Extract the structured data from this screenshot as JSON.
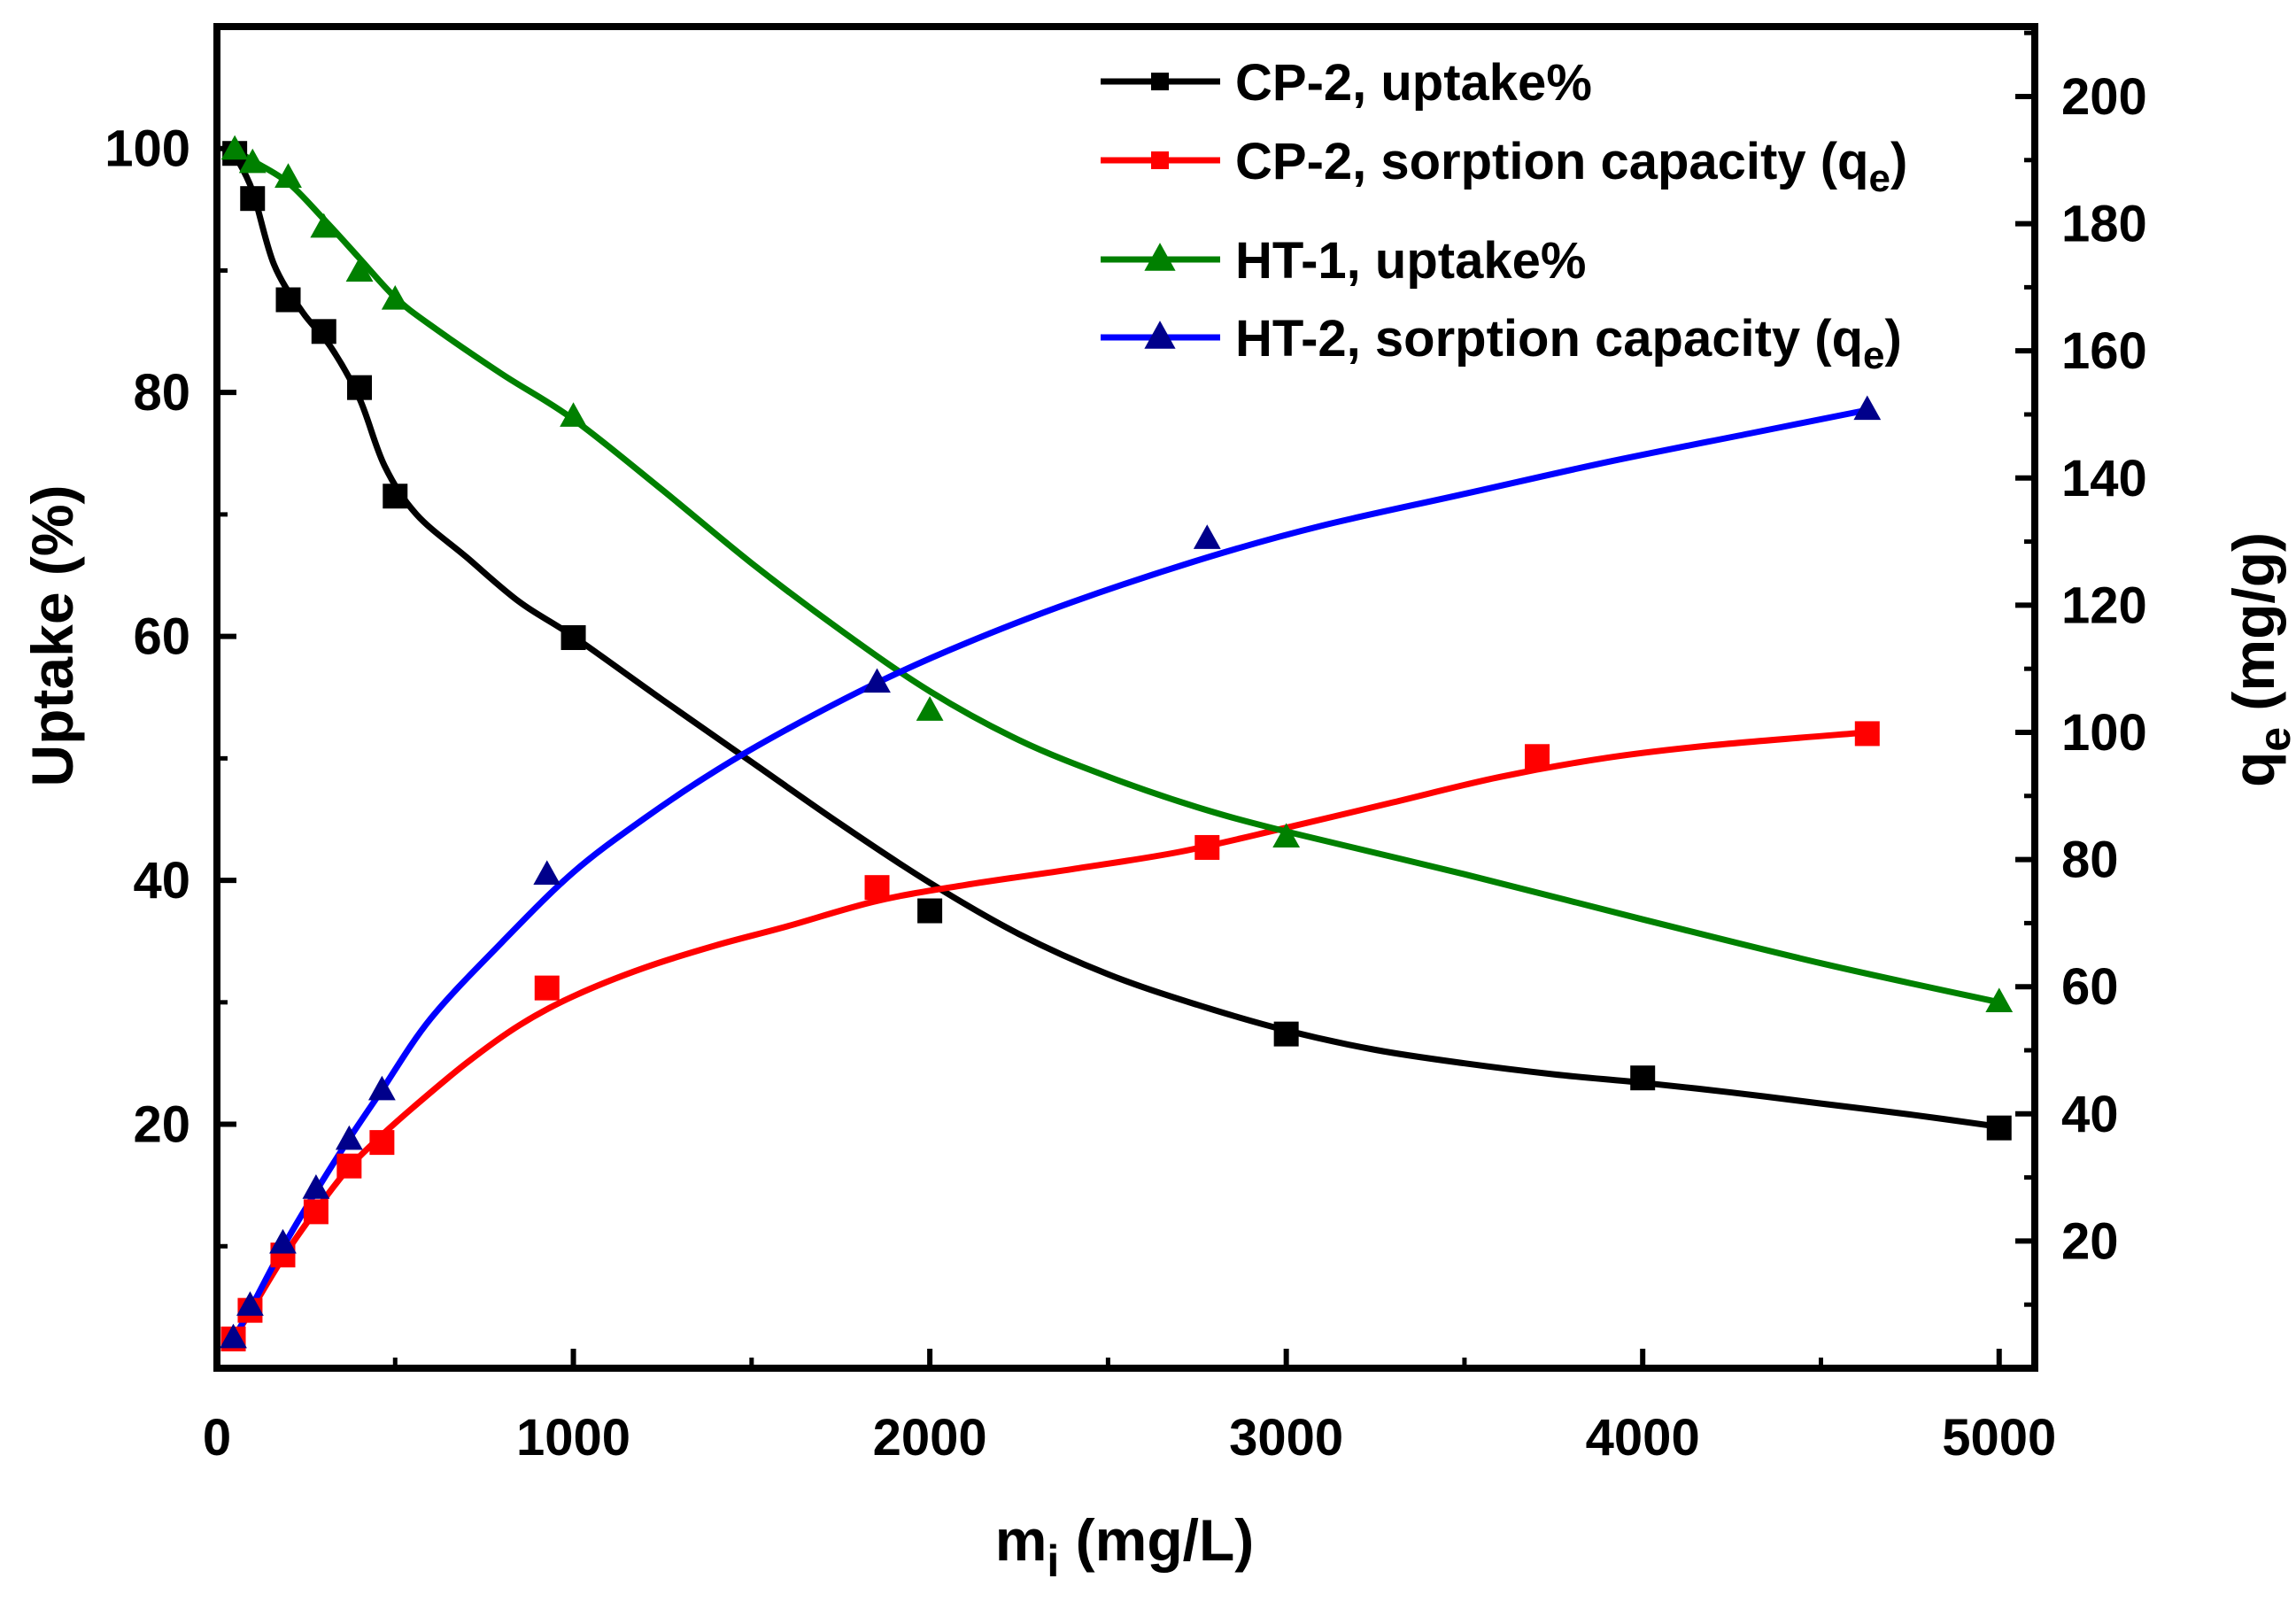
{
  "chart_data": {
    "type": "line",
    "xlabel": {
      "main": "m",
      "sub": "i",
      "rest": " (mg/L)"
    },
    "ylabel_left": "Uptake (%)",
    "ylabel_right": {
      "main": "q",
      "sub": "e",
      "rest": " (mg/g)"
    },
    "xlim": [
      0,
      5100
    ],
    "ylim_left": [
      0,
      110
    ],
    "ylim_right": [
      0,
      211
    ],
    "x_ticks": [
      0,
      1000,
      2000,
      3000,
      4000,
      5000
    ],
    "x_tick_labels": [
      "0",
      "1000",
      "2000",
      "3000",
      "4000",
      "5000"
    ],
    "y_left_ticks": [
      20,
      40,
      60,
      80,
      100
    ],
    "y_left_tick_labels": [
      "20",
      "40",
      "60",
      "80",
      "100"
    ],
    "y_right_ticks": [
      20,
      40,
      60,
      80,
      100,
      120,
      140,
      160,
      180,
      200
    ],
    "y_right_tick_labels": [
      "20",
      "40",
      "60",
      "80",
      "100",
      "120",
      "140",
      "160",
      "180",
      "200"
    ],
    "legend_position": "top-right",
    "series": [
      {
        "name": "CP-2, uptake%",
        "legend_label": "CP-2, uptake%",
        "legend_suffix": null,
        "axis": "left",
        "color": "#000000",
        "marker": "square",
        "x": [
          50,
          100,
          200,
          300,
          400,
          500,
          1000,
          2000,
          3000,
          4000,
          5000
        ],
        "y": [
          99.6,
          95.9,
          87.6,
          85.0,
          80.4,
          71.5,
          59.9,
          37.5,
          27.4,
          23.8,
          19.7
        ],
        "fit_x": [
          50,
          100,
          160,
          240,
          320,
          400,
          470,
          560,
          700,
          850,
          1000,
          1250,
          1500,
          1750,
          2000,
          2250,
          2500,
          2750,
          3000,
          3250,
          3500,
          3750,
          4000,
          4250,
          4500,
          4750,
          5000
        ],
        "fit_y": [
          99.5,
          96.5,
          90.5,
          86.6,
          83.7,
          79.5,
          74.0,
          70.0,
          66.5,
          62.8,
          60.0,
          54.8,
          49.7,
          44.6,
          39.8,
          35.6,
          32.3,
          29.8,
          27.7,
          26.1,
          25.0,
          24.1,
          23.4,
          22.6,
          21.7,
          20.8,
          19.8
        ]
      },
      {
        "name": "CP-2, sorption capacity (qe)",
        "legend_label": "CP-2, sorption capacity ",
        "legend_suffix": {
          "open": "(q",
          "sub": "e",
          "close": ")"
        },
        "axis": "right",
        "color": "#ff0000",
        "marker": "square",
        "x": [
          46,
          93,
          185,
          278,
          371,
          463,
          926,
          1852,
          2778,
          3704,
          4630
        ],
        "y": [
          4.6,
          9.1,
          17.8,
          24.6,
          31.8,
          35.5,
          59.8,
          75.6,
          81.9,
          96.2,
          99.8
        ],
        "fit_x": [
          46,
          100,
          190,
          280,
          370,
          460,
          550,
          700,
          850,
          1000,
          1200,
          1400,
          1600,
          1852,
          2100,
          2400,
          2700,
          3000,
          3300,
          3600,
          3900,
          4200,
          4630
        ],
        "fit_y": [
          4.5,
          9.5,
          17.8,
          25.0,
          31.5,
          36.5,
          41.0,
          48.0,
          54.0,
          58.5,
          63.0,
          66.5,
          69.5,
          73.5,
          76.0,
          78.5,
          81.2,
          85.0,
          89.0,
          93.0,
          96.0,
          98.0,
          100.0
        ]
      },
      {
        "name": "HT-1, uptake%",
        "legend_label": "HT-1, uptake%",
        "legend_suffix": null,
        "axis": "left",
        "color": "#008000",
        "marker": "triangle",
        "x": [
          50,
          100,
          200,
          300,
          400,
          500,
          1000,
          2000,
          3000,
          5000
        ],
        "y": [
          99.9,
          98.8,
          97.6,
          93.5,
          89.9,
          87.6,
          78.0,
          53.9,
          43.5,
          30.0
        ],
        "fit_x": [
          50,
          100,
          200,
          300,
          400,
          500,
          600,
          800,
          1000,
          1250,
          1500,
          1750,
          2000,
          2250,
          2500,
          2750,
          3000,
          3500,
          4000,
          4500,
          5000
        ],
        "fit_y": [
          99.9,
          99.0,
          97.2,
          94.2,
          91.0,
          87.8,
          85.5,
          81.5,
          77.8,
          72.0,
          66.0,
          60.5,
          55.5,
          51.5,
          48.5,
          46.0,
          44.0,
          40.5,
          36.8,
          33.2,
          30.0
        ]
      },
      {
        "name": "HT-2, sorption capacity (qe)",
        "legend_label": "HT-2, sorption capacity ",
        "legend_suffix": {
          "open": "(q",
          "sub": "e",
          "close": ")"
        },
        "axis": "right",
        "color": "#0000ff",
        "marker_color": "#00008b",
        "marker": "triangle",
        "x": [
          46,
          93,
          185,
          278,
          371,
          463,
          926,
          1852,
          2778,
          4630
        ],
        "y": [
          4.7,
          9.8,
          19.6,
          28.2,
          35.9,
          43.7,
          77.6,
          107.8,
          130.4,
          150.7
        ],
        "fit_x": [
          46,
          100,
          190,
          280,
          370,
          460,
          600,
          800,
          1000,
          1200,
          1400,
          1600,
          1852,
          2100,
          2400,
          2778,
          3100,
          3500,
          3900,
          4300,
          4630
        ],
        "fit_y": [
          4.5,
          10.0,
          19.5,
          28.0,
          36.0,
          43.5,
          55.0,
          67.0,
          78.0,
          86.5,
          94.0,
          100.5,
          107.8,
          114.0,
          120.5,
          127.5,
          132.5,
          137.5,
          142.5,
          147.0,
          150.7
        ]
      }
    ]
  }
}
